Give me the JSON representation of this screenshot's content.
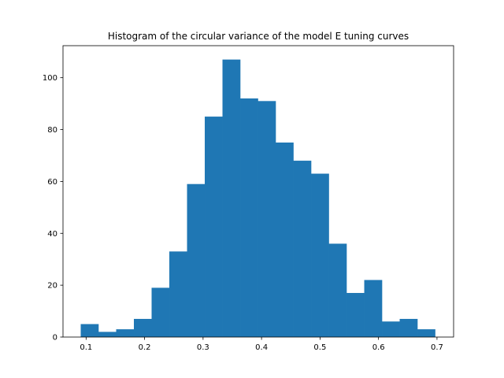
{
  "chart_data": {
    "type": "bar",
    "title": "Histogram of the circular variance of the model E tuning curves",
    "xlabel": "",
    "ylabel": "",
    "xlim": [
      0.0605,
      0.7284
    ],
    "ylim": [
      0,
      112.35
    ],
    "bin_start": 0.0908,
    "bin_width": 0.0303,
    "values": [
      5,
      2,
      3,
      7,
      19,
      33,
      59,
      85,
      107,
      92,
      91,
      75,
      68,
      63,
      36,
      17,
      22,
      6,
      7,
      3
    ],
    "x_ticks": [
      "0.1",
      "0.2",
      "0.3",
      "0.4",
      "0.5",
      "0.6",
      "0.7"
    ],
    "y_ticks": [
      "0",
      "20",
      "40",
      "60",
      "80",
      "100"
    ],
    "bar_color": "#1f77b4",
    "grid": false,
    "legend": "none"
  }
}
